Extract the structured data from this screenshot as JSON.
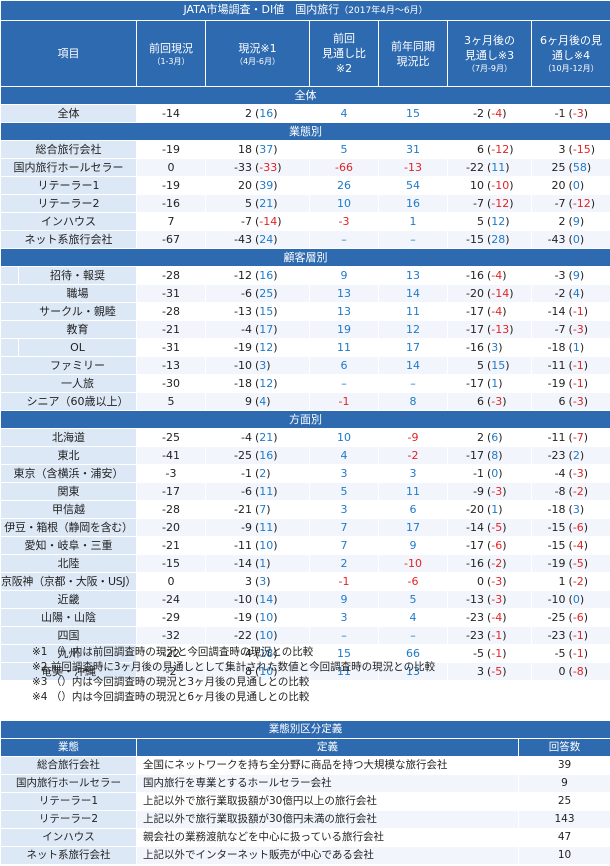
{
  "title": "JATA市場調査・DI値　国内旅行",
  "title_period": "（2017年4月～6月）",
  "columns": [
    {
      "label": "項目",
      "sub": ""
    },
    {
      "label": "前回現況",
      "sub": "（1-3月）"
    },
    {
      "label": "現況※1",
      "sub": "（4月-6月）"
    },
    {
      "label": "前回\n見通し比\n※2",
      "sub": ""
    },
    {
      "label": "前年同期\n現況比",
      "sub": ""
    },
    {
      "label": "3ヶ月後の\n見通し※3",
      "sub": "（7月-9月）"
    },
    {
      "label": "6ヶ月後の見\n通し※4",
      "sub": "（10月-12月）"
    }
  ],
  "sections": [
    {
      "title": "全体",
      "rows": [
        {
          "label": "全体",
          "prev": "-14",
          "cur": "2",
          "cur_diff": "(16)",
          "outlook_vs": "4",
          "yoy": "15",
          "m3": "-2",
          "m3_diff": "(-4)",
          "m6": "-1",
          "m6_diff": "(-3)"
        }
      ]
    },
    {
      "title": "業態別",
      "rows": [
        {
          "label": "総合旅行会社",
          "prev": "-19",
          "cur": "18",
          "cur_diff": "(37)",
          "outlook_vs": "5",
          "yoy": "31",
          "m3": "6",
          "m3_diff": "(-12)",
          "m6": "3",
          "m6_diff": "(-15)"
        },
        {
          "label": "国内旅行ホールセラー",
          "prev": "0",
          "cur": "-33",
          "cur_diff": "(-33)",
          "outlook_vs": "-66",
          "yoy": "-13",
          "m3": "-22",
          "m3_diff": "(11)",
          "m6": "25",
          "m6_diff": "(58)"
        },
        {
          "label": "リテーラー1",
          "prev": "-19",
          "cur": "20",
          "cur_diff": "(39)",
          "outlook_vs": "26",
          "yoy": "54",
          "m3": "10",
          "m3_diff": "(-10)",
          "m6": "20",
          "m6_diff": "(0)"
        },
        {
          "label": "リテーラー2",
          "prev": "-16",
          "cur": "5",
          "cur_diff": "(21)",
          "outlook_vs": "10",
          "yoy": "16",
          "m3": "-7",
          "m3_diff": "(-12)",
          "m6": "-7",
          "m6_diff": "(-12)"
        },
        {
          "label": "インハウス",
          "prev": "7",
          "cur": "-7",
          "cur_diff": "(-14)",
          "outlook_vs": "-3",
          "yoy": "1",
          "m3": "5",
          "m3_diff": "(12)",
          "m6": "2",
          "m6_diff": "(9)"
        },
        {
          "label": "ネット系旅行会社",
          "prev": "-67",
          "cur": "-43",
          "cur_diff": "(24)",
          "outlook_vs": "–",
          "yoy": "–",
          "m3": "-15",
          "m3_diff": "(28)",
          "m6": "-43",
          "m6_diff": "(0)"
        }
      ]
    },
    {
      "title": "顧客層別",
      "groups": [
        {
          "name": "団\n体",
          "rows": [
            {
              "label": "招待・報奨",
              "prev": "-28",
              "cur": "-12",
              "cur_diff": "(16)",
              "outlook_vs": "9",
              "yoy": "13",
              "m3": "-16",
              "m3_diff": "(-4)",
              "m6": "-3",
              "m6_diff": "(9)"
            },
            {
              "label": "職場",
              "prev": "-31",
              "cur": "-6",
              "cur_diff": "(25)",
              "outlook_vs": "13",
              "yoy": "14",
              "m3": "-20",
              "m3_diff": "(-14)",
              "m6": "-2",
              "m6_diff": "(4)"
            },
            {
              "label": "サークル・親睦",
              "prev": "-28",
              "cur": "-13",
              "cur_diff": "(15)",
              "outlook_vs": "13",
              "yoy": "11",
              "m3": "-17",
              "m3_diff": "(-4)",
              "m6": "-14",
              "m6_diff": "(-1)"
            },
            {
              "label": "教育",
              "prev": "-21",
              "cur": "-4",
              "cur_diff": "(17)",
              "outlook_vs": "19",
              "yoy": "12",
              "m3": "-17",
              "m3_diff": "(-13)",
              "m6": "-7",
              "m6_diff": "(-3)"
            }
          ]
        },
        {
          "name": "個\n人",
          "rows": [
            {
              "label": "OL",
              "prev": "-31",
              "cur": "-19",
              "cur_diff": "(12)",
              "outlook_vs": "11",
              "yoy": "17",
              "m3": "-16",
              "m3_diff": "(3)",
              "m6": "-18",
              "m6_diff": "(1)"
            },
            {
              "label": "ファミリー",
              "prev": "-13",
              "cur": "-10",
              "cur_diff": "(3)",
              "outlook_vs": "6",
              "yoy": "14",
              "m3": "5",
              "m3_diff": "(15)",
              "m6": "-11",
              "m6_diff": "(-1)"
            },
            {
              "label": "一人旅",
              "prev": "-30",
              "cur": "-18",
              "cur_diff": "(12)",
              "outlook_vs": "–",
              "yoy": "–",
              "m3": "-17",
              "m3_diff": "(1)",
              "m6": "-19",
              "m6_diff": "(-1)"
            },
            {
              "label": "シニア（60歳以上）",
              "prev": "5",
              "cur": "9",
              "cur_diff": "(4)",
              "outlook_vs": "-1",
              "yoy": "8",
              "m3": "6",
              "m3_diff": "(-3)",
              "m6": "6",
              "m6_diff": "(-3)"
            }
          ]
        }
      ]
    },
    {
      "title": "方面別",
      "rows": [
        {
          "label": "北海道",
          "prev": "-25",
          "cur": "-4",
          "cur_diff": "(21)",
          "outlook_vs": "10",
          "yoy": "-9",
          "m3": "2",
          "m3_diff": "(6)",
          "m6": "-11",
          "m6_diff": "(-7)"
        },
        {
          "label": "東北",
          "prev": "-41",
          "cur": "-25",
          "cur_diff": "(16)",
          "outlook_vs": "4",
          "yoy": "-2",
          "m3": "-17",
          "m3_diff": "(8)",
          "m6": "-23",
          "m6_diff": "(2)"
        },
        {
          "label": "東京（含横浜・浦安）",
          "prev": "-3",
          "cur": "-1",
          "cur_diff": "(2)",
          "outlook_vs": "3",
          "yoy": "3",
          "m3": "-1",
          "m3_diff": "(0)",
          "m6": "-4",
          "m6_diff": "(-3)"
        },
        {
          "label": "関東",
          "prev": "-17",
          "cur": "-6",
          "cur_diff": "(11)",
          "outlook_vs": "5",
          "yoy": "11",
          "m3": "-9",
          "m3_diff": "(-3)",
          "m6": "-8",
          "m6_diff": "(-2)"
        },
        {
          "label": "甲信越",
          "prev": "-28",
          "cur": "-21",
          "cur_diff": "(7)",
          "outlook_vs": "3",
          "yoy": "6",
          "m3": "-20",
          "m3_diff": "(1)",
          "m6": "-18",
          "m6_diff": "(3)"
        },
        {
          "label": "伊豆・箱根（静岡を含む）",
          "prev": "-20",
          "cur": "-9",
          "cur_diff": "(11)",
          "outlook_vs": "7",
          "yoy": "17",
          "m3": "-14",
          "m3_diff": "(-5)",
          "m6": "-15",
          "m6_diff": "(-6)"
        },
        {
          "label": "愛知・岐阜・三重",
          "prev": "-21",
          "cur": "-11",
          "cur_diff": "(10)",
          "outlook_vs": "7",
          "yoy": "9",
          "m3": "-17",
          "m3_diff": "(-6)",
          "m6": "-15",
          "m6_diff": "(-4)"
        },
        {
          "label": "北陸",
          "prev": "-15",
          "cur": "-14",
          "cur_diff": "(1)",
          "outlook_vs": "2",
          "yoy": "-10",
          "m3": "-16",
          "m3_diff": "(-2)",
          "m6": "-19",
          "m6_diff": "(-5)"
        },
        {
          "label": "京阪神（京都・大阪・USJ）",
          "prev": "0",
          "cur": "3",
          "cur_diff": "(3)",
          "outlook_vs": "-1",
          "yoy": "-6",
          "m3": "0",
          "m3_diff": "(-3)",
          "m6": "1",
          "m6_diff": "(-2)"
        },
        {
          "label": "近畿",
          "prev": "-24",
          "cur": "-10",
          "cur_diff": "(14)",
          "outlook_vs": "9",
          "yoy": "5",
          "m3": "-13",
          "m3_diff": "(-3)",
          "m6": "-10",
          "m6_diff": "(0)"
        },
        {
          "label": "山陽・山陰",
          "prev": "-29",
          "cur": "-19",
          "cur_diff": "(10)",
          "outlook_vs": "3",
          "yoy": "4",
          "m3": "-23",
          "m3_diff": "(-4)",
          "m6": "-25",
          "m6_diff": "(-6)"
        },
        {
          "label": "四国",
          "prev": "-32",
          "cur": "-22",
          "cur_diff": "(10)",
          "outlook_vs": "–",
          "yoy": "–",
          "m3": "-23",
          "m3_diff": "(-1)",
          "m6": "-23",
          "m6_diff": "(-1)"
        },
        {
          "label": "九州",
          "prev": "-22",
          "cur": "-4",
          "cur_diff": "(18)",
          "outlook_vs": "15",
          "yoy": "66",
          "m3": "-5",
          "m3_diff": "(-1)",
          "m6": "-5",
          "m6_diff": "(-1)"
        },
        {
          "label": "奄美・沖縄",
          "prev": "-2",
          "cur": "8",
          "cur_diff": "(10)",
          "outlook_vs": "11",
          "yoy": "13",
          "m3": "3",
          "m3_diff": "(-5)",
          "m6": "0",
          "m6_diff": "(-8)"
        }
      ]
    }
  ],
  "notes": [
    "※1 （）内は前回調査時の現況と今回調査時の現況との比較",
    "※2 前回調査時に3ヶ月後の見通しとして集計された数値と今回調査時の現況との比較",
    "※3 （）内は今回調査時の現況と3ヶ月後の見通しとの比較",
    "※4 （）内は今回調査時の現況と6ヶ月後の見通しとの比較"
  ],
  "definitions": {
    "title": "業態別区分定義",
    "headers": [
      "業態",
      "定義",
      "回答数"
    ],
    "rows": [
      {
        "name": "総合旅行会社",
        "definition": "全国にネットワークを持ち全分野に商品を持つ大規模な旅行会社",
        "count": "39"
      },
      {
        "name": "国内旅行ホールセラー",
        "definition": "国内旅行を専業とするホールセラー会社",
        "count": "9"
      },
      {
        "name": "リテーラー1",
        "definition": "上記以外で旅行業取扱額が30億円以上の旅行会社",
        "count": "25"
      },
      {
        "name": "リテーラー2",
        "definition": "上記以外で旅行業取扱額が30億円未満の旅行会社",
        "count": "143"
      },
      {
        "name": "インハウス",
        "definition": "親会社の業務渡航などを中心に扱っている旅行会社",
        "count": "47"
      },
      {
        "name": "ネット系旅行会社",
        "definition": "上記以外でインターネット販売が中心である会社",
        "count": "10"
      }
    ]
  },
  "colors": {
    "header_bg": "#2e6ab0",
    "label_bg": "#dde8f6",
    "positive": "#1f7ac8",
    "negative": "#e02424"
  }
}
